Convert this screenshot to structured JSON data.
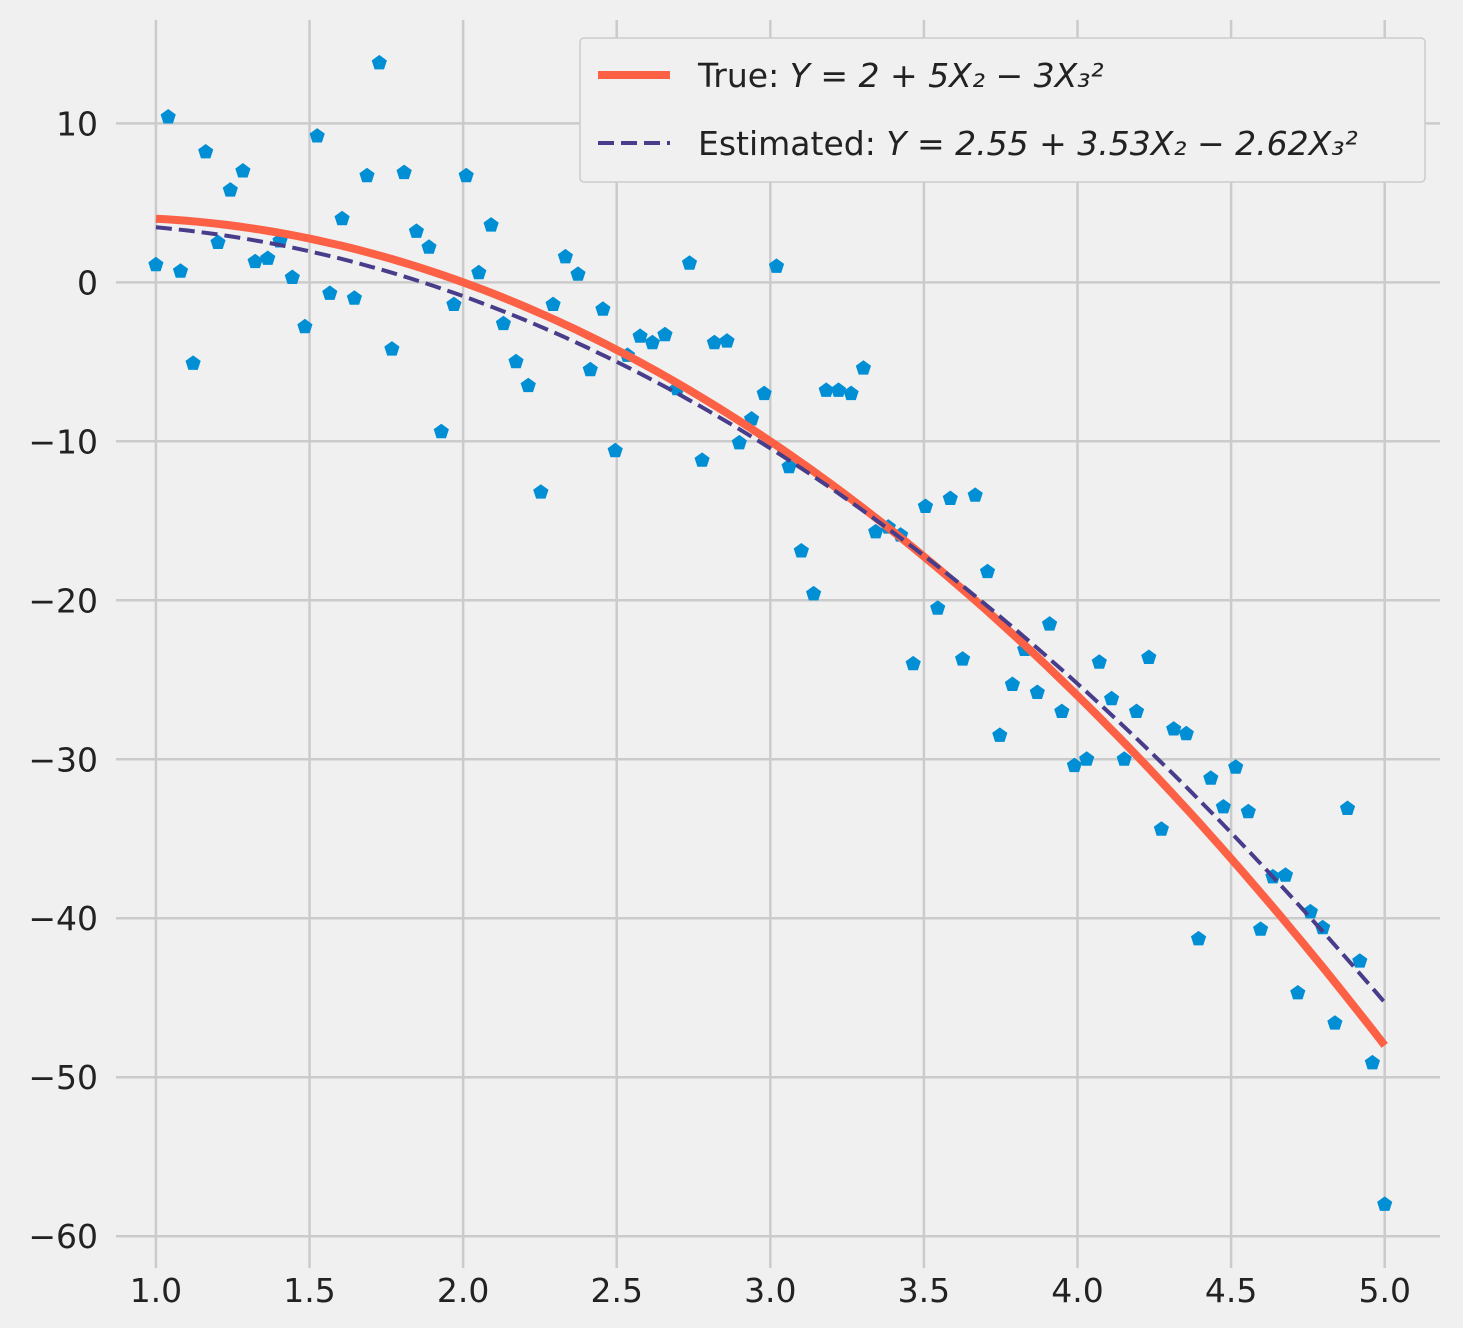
{
  "chart_data": {
    "type": "scatter",
    "title": "",
    "xlabel": "",
    "ylabel": "",
    "xlim": [
      0.87,
      5.18
    ],
    "ylim": [
      -62,
      16.5
    ],
    "xticks": [
      1.0,
      1.5,
      2.0,
      2.5,
      3.0,
      3.5,
      4.0,
      4.5,
      5.0
    ],
    "xtick_labels": [
      "1.0",
      "1.5",
      "2.0",
      "2.5",
      "3.0",
      "3.5",
      "4.0",
      "4.5",
      "5.0"
    ],
    "yticks": [
      10,
      0,
      -10,
      -20,
      -30,
      -40,
      -50,
      -60
    ],
    "ytick_labels": [
      "10",
      "0",
      "−10",
      "−20",
      "−30",
      "−40",
      "−50",
      "−60"
    ],
    "grid": true,
    "legend_position": "top-right",
    "legend": {
      "true_prefix": "True: ",
      "true_formula": "Y = 2 + 5X₂ − 3X₃²",
      "estimated_prefix": "Estimated: ",
      "estimated_formula": "Y = 2.55 + 3.53X₂ − 2.62X₃²"
    },
    "colors": {
      "background": "#f0f0f0",
      "grid": "#cbcbcb",
      "points": "#008fd5",
      "true_line": "#fc6146",
      "estimated_line": "#483d8b"
    },
    "curves": {
      "true": {
        "a": 2,
        "b": 5,
        "c": -3
      },
      "estimated": {
        "a": 2.55,
        "b": 3.53,
        "c": -2.62
      },
      "x_range": [
        1.0,
        5.0
      ]
    },
    "points": {
      "x": [
        1.0,
        1.04,
        1.08,
        1.121,
        1.162,
        1.202,
        1.242,
        1.283,
        1.323,
        1.364,
        1.404,
        1.444,
        1.485,
        1.525,
        1.566,
        1.606,
        1.646,
        1.687,
        1.727,
        1.768,
        1.808,
        1.848,
        1.889,
        1.929,
        1.97,
        2.01,
        2.051,
        2.091,
        2.131,
        2.172,
        2.212,
        2.253,
        2.293,
        2.333,
        2.374,
        2.414,
        2.455,
        2.495,
        2.535,
        2.576,
        2.616,
        2.657,
        2.697,
        2.737,
        2.778,
        2.818,
        2.859,
        2.899,
        2.939,
        2.98,
        3.02,
        3.061,
        3.101,
        3.141,
        3.182,
        3.222,
        3.263,
        3.303,
        3.343,
        3.384,
        3.424,
        3.465,
        3.505,
        3.545,
        3.586,
        3.626,
        3.667,
        3.707,
        3.747,
        3.788,
        3.828,
        3.869,
        3.909,
        3.949,
        3.99,
        4.03,
        4.071,
        4.111,
        4.152,
        4.192,
        4.232,
        4.273,
        4.313,
        4.354,
        4.394,
        4.434,
        4.475,
        4.515,
        4.556,
        4.596,
        4.636,
        4.677,
        4.717,
        4.758,
        4.798,
        4.838,
        4.879,
        4.919,
        4.96,
        5.0
      ],
      "y": [
        1.1,
        10.4,
        0.7,
        -5.1,
        8.2,
        2.5,
        5.8,
        7.0,
        1.3,
        1.5,
        2.6,
        0.3,
        -2.8,
        9.2,
        -0.7,
        4.0,
        -1.0,
        6.7,
        13.8,
        -4.2,
        6.9,
        3.2,
        2.2,
        -9.4,
        -1.4,
        6.7,
        0.6,
        3.6,
        -2.6,
        -5.0,
        -6.5,
        -13.2,
        -1.4,
        1.6,
        0.5,
        -5.5,
        -1.7,
        -10.6,
        -4.6,
        -3.4,
        -3.8,
        -3.3,
        -6.7,
        1.2,
        -11.2,
        -3.8,
        -3.7,
        -10.1,
        -8.6,
        -7.0,
        1.0,
        -11.6,
        -16.9,
        -19.6,
        -6.8,
        -6.8,
        -7.0,
        -5.4,
        -15.7,
        -15.4,
        -15.9,
        -24.0,
        -14.1,
        -20.5,
        -13.6,
        -23.7,
        -13.4,
        -18.2,
        -28.5,
        -25.3,
        -23.1,
        -25.8,
        -21.5,
        -27.0,
        -30.4,
        -30.0,
        -23.9,
        -26.2,
        -30.0,
        -27.0,
        -23.6,
        -34.4,
        -28.1,
        -28.4,
        -41.3,
        -31.2,
        -33.0,
        -30.5,
        -33.3,
        -40.7,
        -37.4,
        -37.3,
        -44.7,
        -39.6,
        -40.6,
        -46.6,
        -33.1,
        -42.7,
        -49.1,
        -58.0
      ]
    }
  }
}
